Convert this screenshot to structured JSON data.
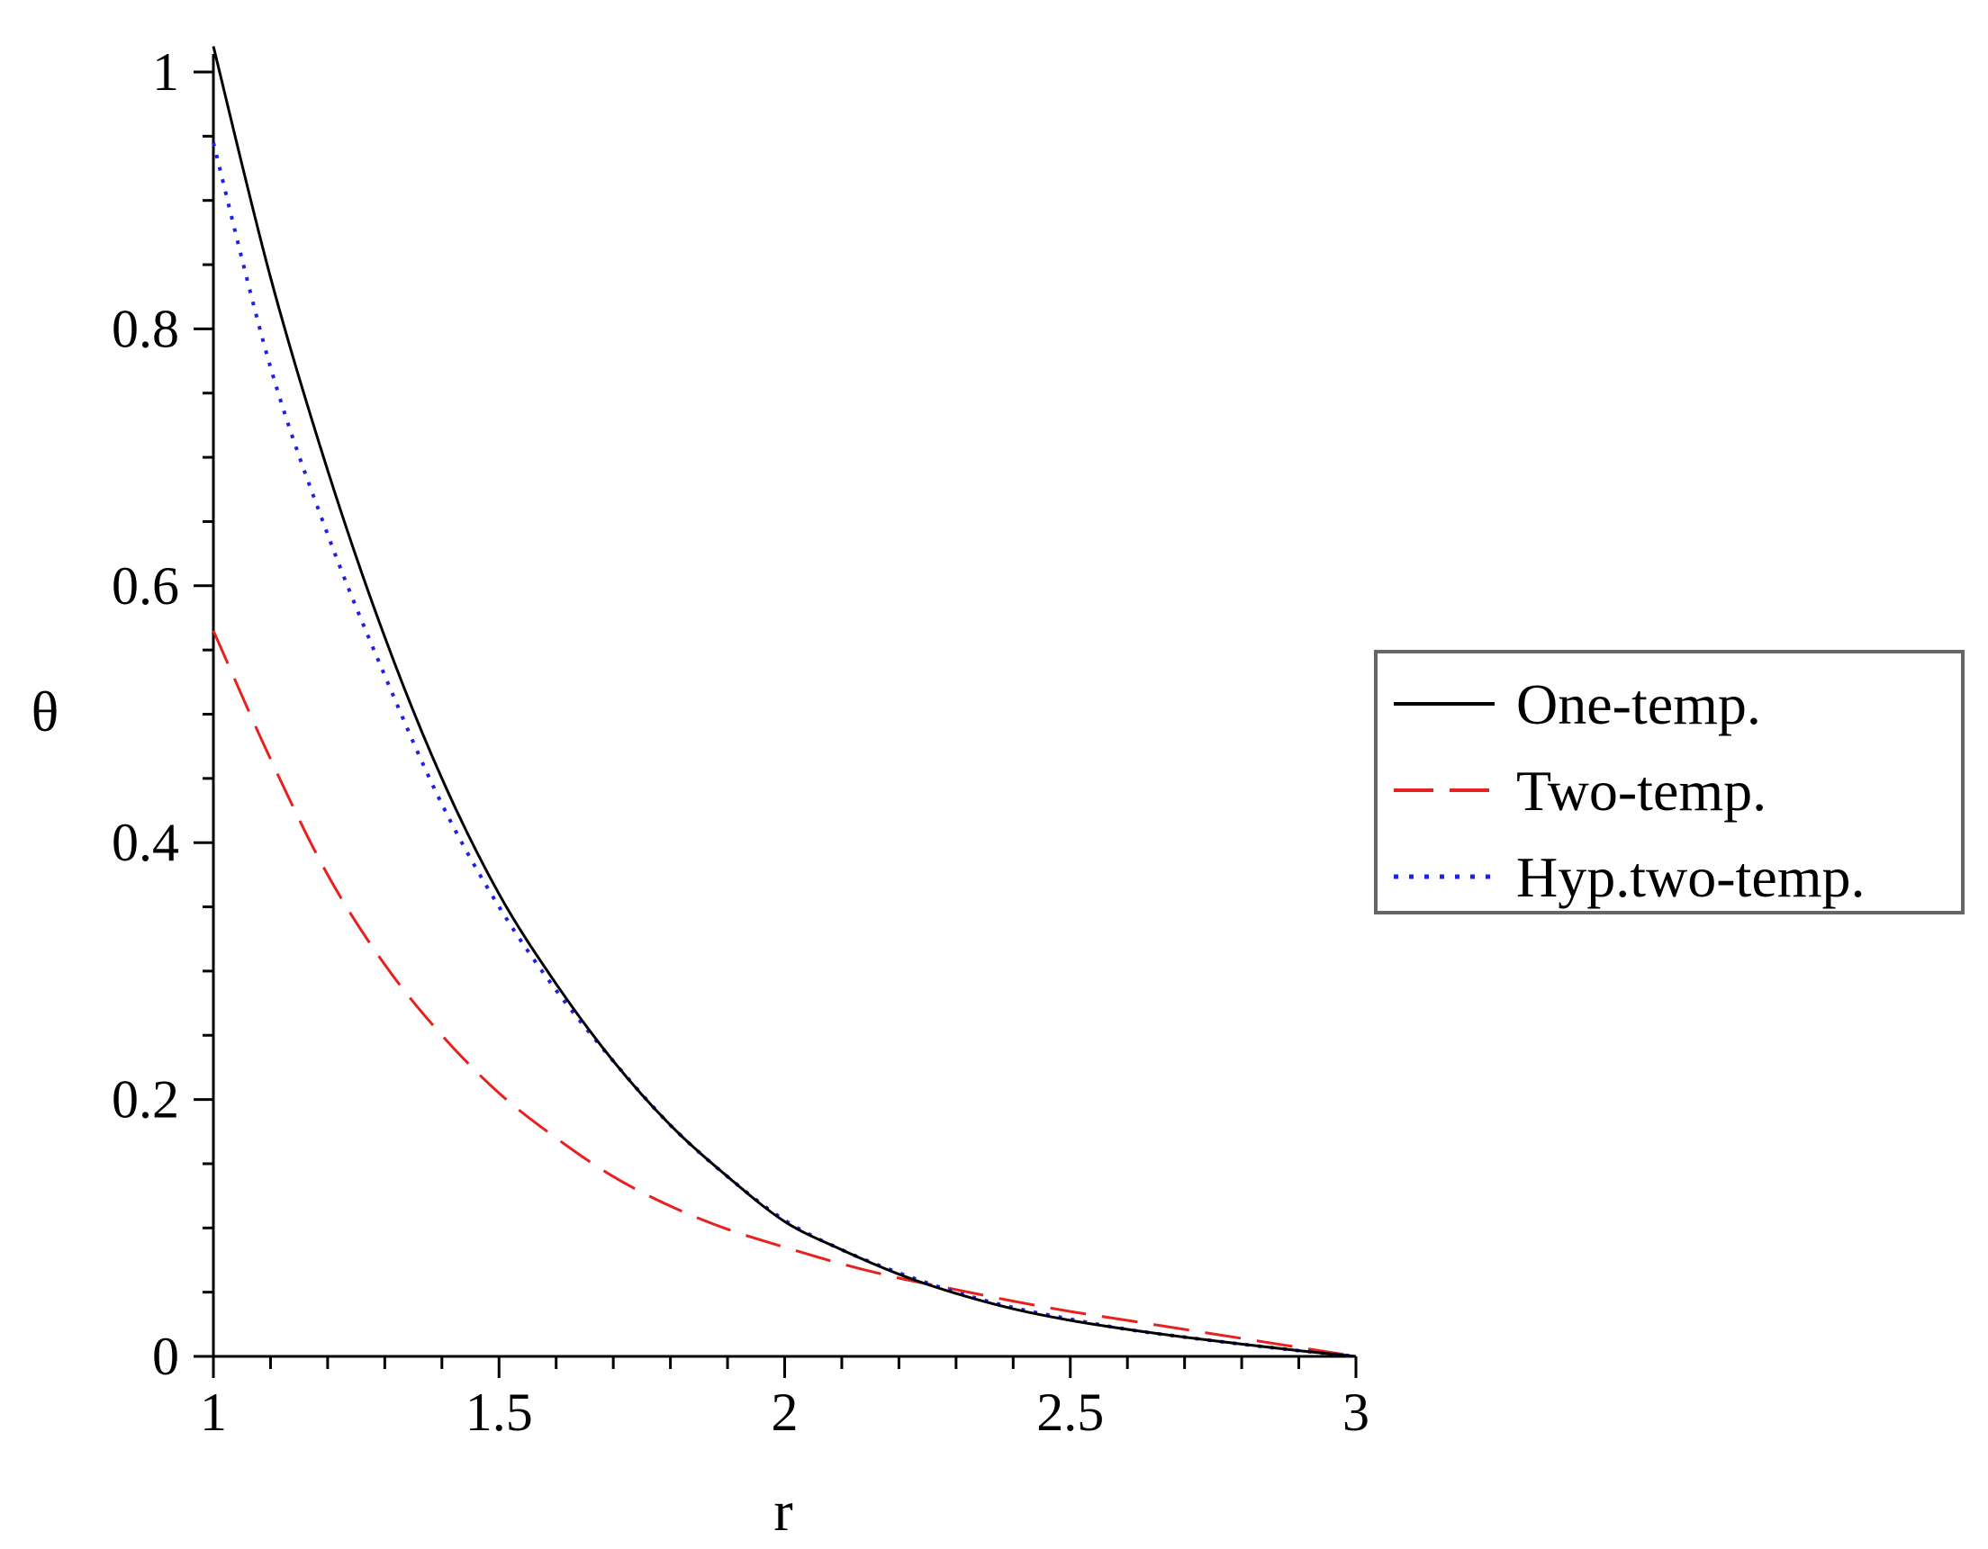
{
  "chart_data": {
    "type": "line",
    "title": "",
    "xlabel": "r",
    "ylabel": "θ",
    "xlim": [
      1,
      3
    ],
    "ylim": [
      0,
      1
    ],
    "x_ticks": [
      {
        "value": 1,
        "label": "1"
      },
      {
        "value": 1.5,
        "label": "1.5"
      },
      {
        "value": 2,
        "label": "2"
      },
      {
        "value": 2.5,
        "label": "2.5"
      },
      {
        "value": 3,
        "label": "3"
      }
    ],
    "y_ticks": [
      {
        "value": 0,
        "label": "0"
      },
      {
        "value": 0.2,
        "label": "0.2"
      },
      {
        "value": 0.4,
        "label": "0.4"
      },
      {
        "value": 0.6,
        "label": "0.6"
      },
      {
        "value": 0.8,
        "label": "0.8"
      },
      {
        "value": 1,
        "label": "1"
      }
    ],
    "x": [
      1.0,
      1.1,
      1.2,
      1.3,
      1.4,
      1.5,
      1.6,
      1.7,
      1.8,
      1.9,
      2.0,
      2.1,
      2.2,
      2.3,
      2.4,
      2.5,
      2.6,
      2.7,
      2.8,
      2.9,
      3.0
    ],
    "series": [
      {
        "name": "One-temp.",
        "color": "#000000",
        "style": "solid",
        "values": [
          1.02,
          0.84,
          0.69,
          0.56,
          0.45,
          0.36,
          0.29,
          0.23,
          0.18,
          0.14,
          0.105,
          0.083,
          0.064,
          0.049,
          0.037,
          0.028,
          0.021,
          0.015,
          0.0095,
          0.0045,
          0.0
        ]
      },
      {
        "name": "Two-temp.",
        "color": "#e8211f",
        "style": "dashed",
        "values": [
          0.565,
          0.465,
          0.375,
          0.305,
          0.25,
          0.205,
          0.17,
          0.14,
          0.117,
          0.099,
          0.085,
          0.072,
          0.061,
          0.052,
          0.043,
          0.035,
          0.028,
          0.021,
          0.014,
          0.007,
          0.0
        ]
      },
      {
        "name": "Hyp.two-temp.",
        "color": "#1f1fe8",
        "style": "dotted",
        "values": [
          0.945,
          0.77,
          0.64,
          0.53,
          0.43,
          0.35,
          0.285,
          0.23,
          0.18,
          0.14,
          0.106,
          0.083,
          0.065,
          0.05,
          0.038,
          0.029,
          0.021,
          0.015,
          0.0095,
          0.0045,
          0.0
        ]
      }
    ],
    "grid": false,
    "legend_position": "right"
  }
}
